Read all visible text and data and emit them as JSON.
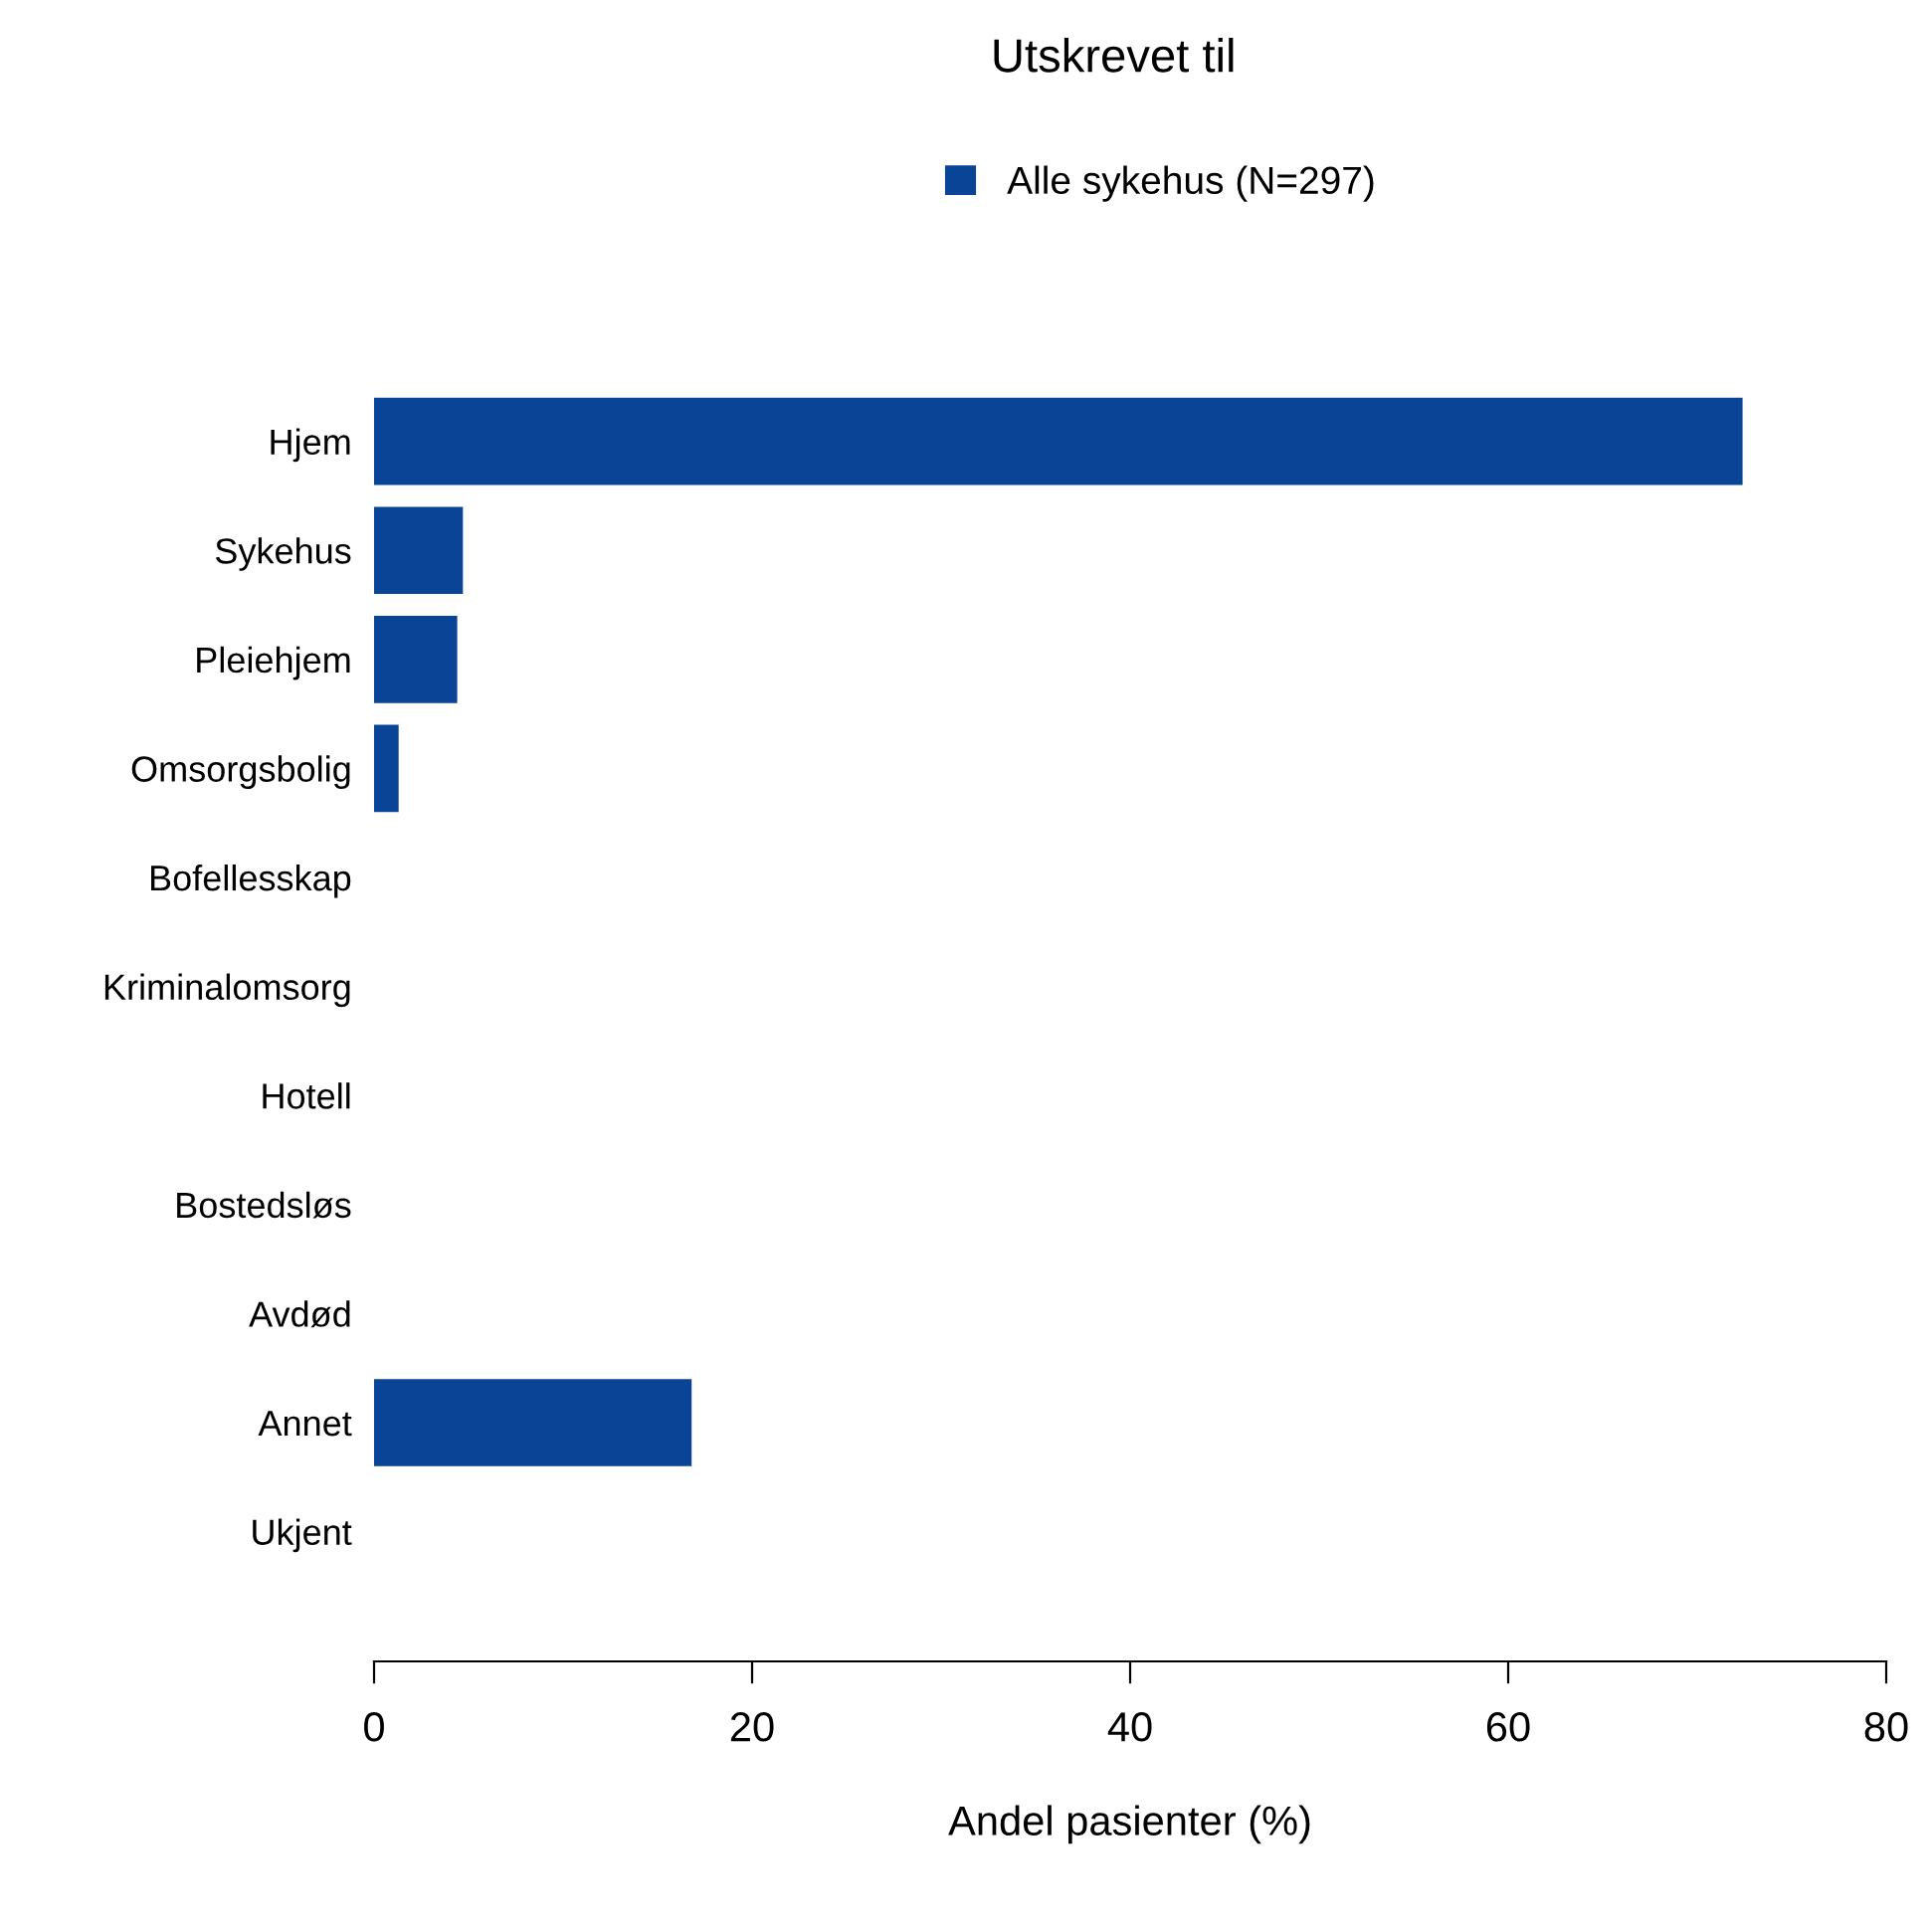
{
  "chart_data": {
    "type": "bar",
    "orientation": "horizontal",
    "title": "Utskrevet til",
    "xlabel": "Andel pasienter (%)",
    "categories": [
      "Hjem",
      "Sykehus",
      "Pleiehjem",
      "Omsorgsbolig",
      "Bofellesskap",
      "Kriminalomsorg",
      "Hotell",
      "Bostedsløs",
      "Avdød",
      "Annet",
      "Ukjent"
    ],
    "series": [
      {
        "name": "Alle sykehus (N=297)",
        "color": "#0a4496",
        "values": [
          72.4,
          4.7,
          4.4,
          1.3,
          0,
          0,
          0,
          0,
          0,
          16.8,
          0
        ]
      }
    ],
    "xlim": [
      0,
      80
    ],
    "xticks": [
      0,
      20,
      40,
      60,
      80
    ],
    "grid": false,
    "legend": "top"
  }
}
